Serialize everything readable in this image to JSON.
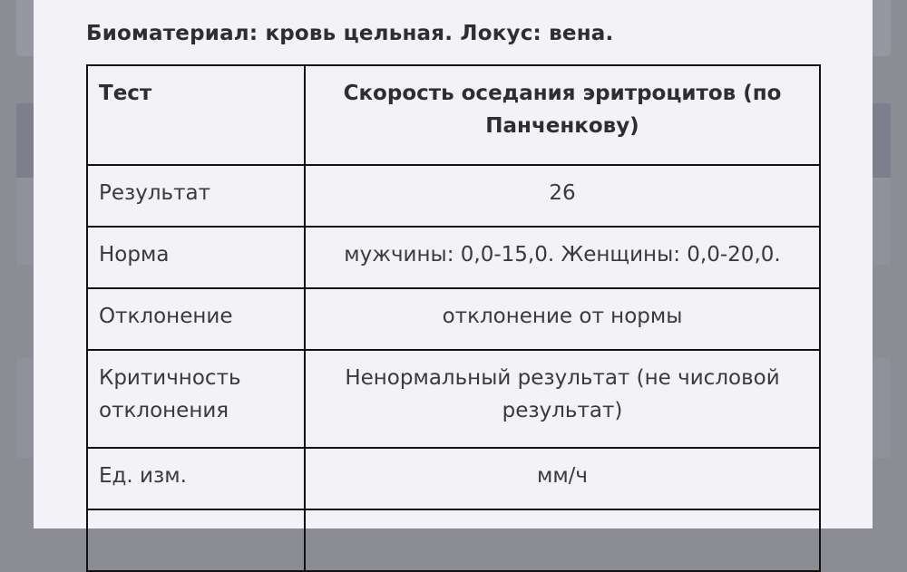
{
  "modal": {
    "title": "Биоматериал: кровь цельная. Локус: вена.",
    "table": {
      "header": {
        "label": "Тест",
        "value": "Скорость оседания эритроцитов (по Панченкову)"
      },
      "rows": [
        {
          "label": "Результат",
          "value": "26"
        },
        {
          "label": "Норма",
          "value": "мужчины: 0,0-15,0. Женщины: 0,0-20,0."
        },
        {
          "label": "Отклонение",
          "value": "отклонение от нормы"
        },
        {
          "label": "Критичность отклонения",
          "value": "Ненормальный результат (не числовой результат)"
        },
        {
          "label": "Ед. изм.",
          "value": "мм/ч"
        },
        {
          "label": "",
          "value": ""
        }
      ]
    }
  }
}
